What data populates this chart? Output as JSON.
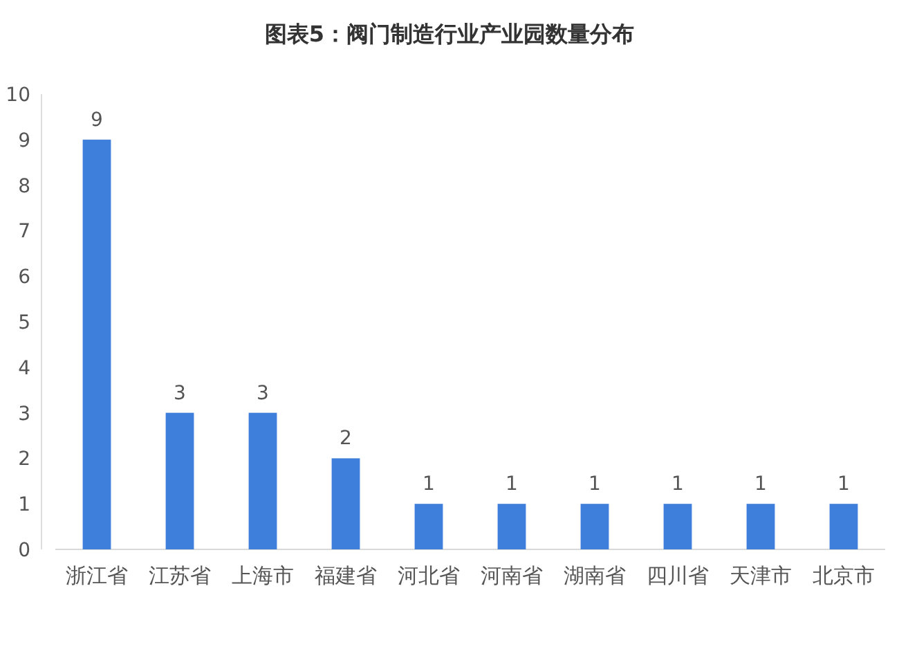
{
  "chart_data": {
    "type": "bar",
    "title": "图表5：阀门制造行业产业园数量分布",
    "categories": [
      "浙江省",
      "江苏省",
      "上海市",
      "福建省",
      "河北省",
      "河南省",
      "湖南省",
      "四川省",
      "天津市",
      "北京市"
    ],
    "values": [
      9,
      3,
      3,
      2,
      1,
      1,
      1,
      1,
      1,
      1
    ],
    "color": "#3f7fdc",
    "ylim": [
      0,
      10
    ],
    "yticks": [
      0,
      1,
      2,
      3,
      4,
      5,
      6,
      7,
      8,
      9,
      10
    ],
    "data_labels": true
  }
}
